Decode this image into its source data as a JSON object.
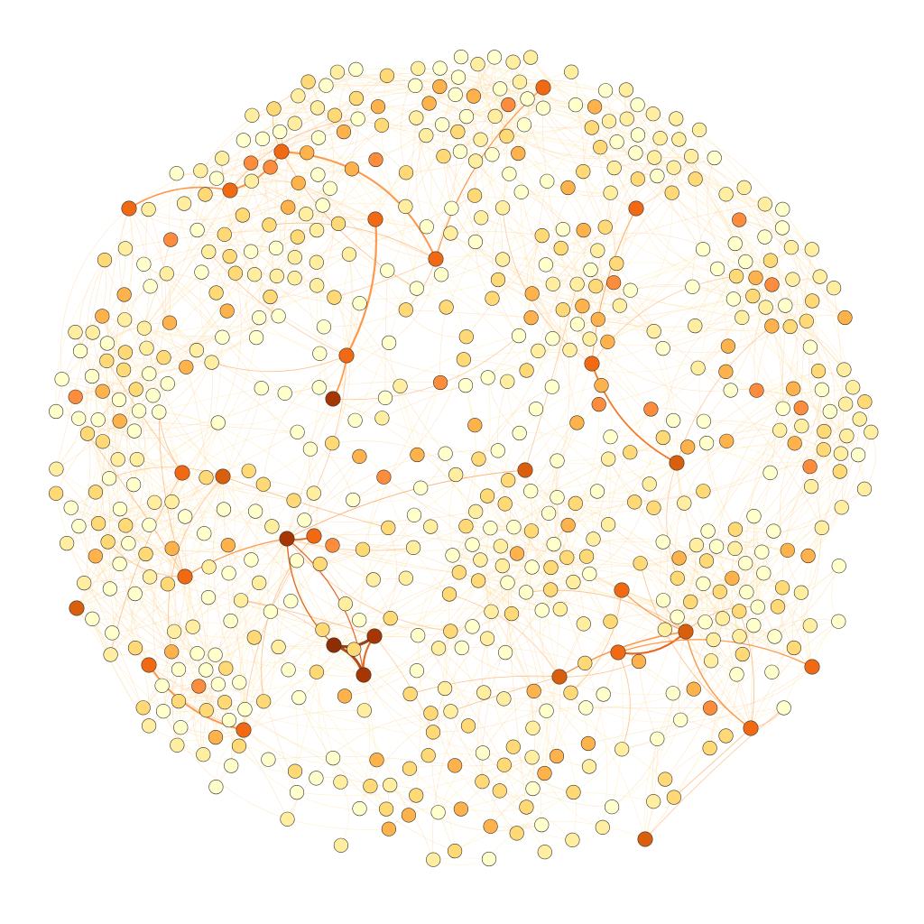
{
  "graph": {
    "type": "network",
    "labels_shown": false,
    "node_count": 620,
    "color_scale": [
      "#ffffcc",
      "#ffeda0",
      "#fed976",
      "#feb24c",
      "#fd8d3c",
      "#f16913",
      "#d95f0e",
      "#a63603",
      "#8c2d04"
    ]
  }
}
